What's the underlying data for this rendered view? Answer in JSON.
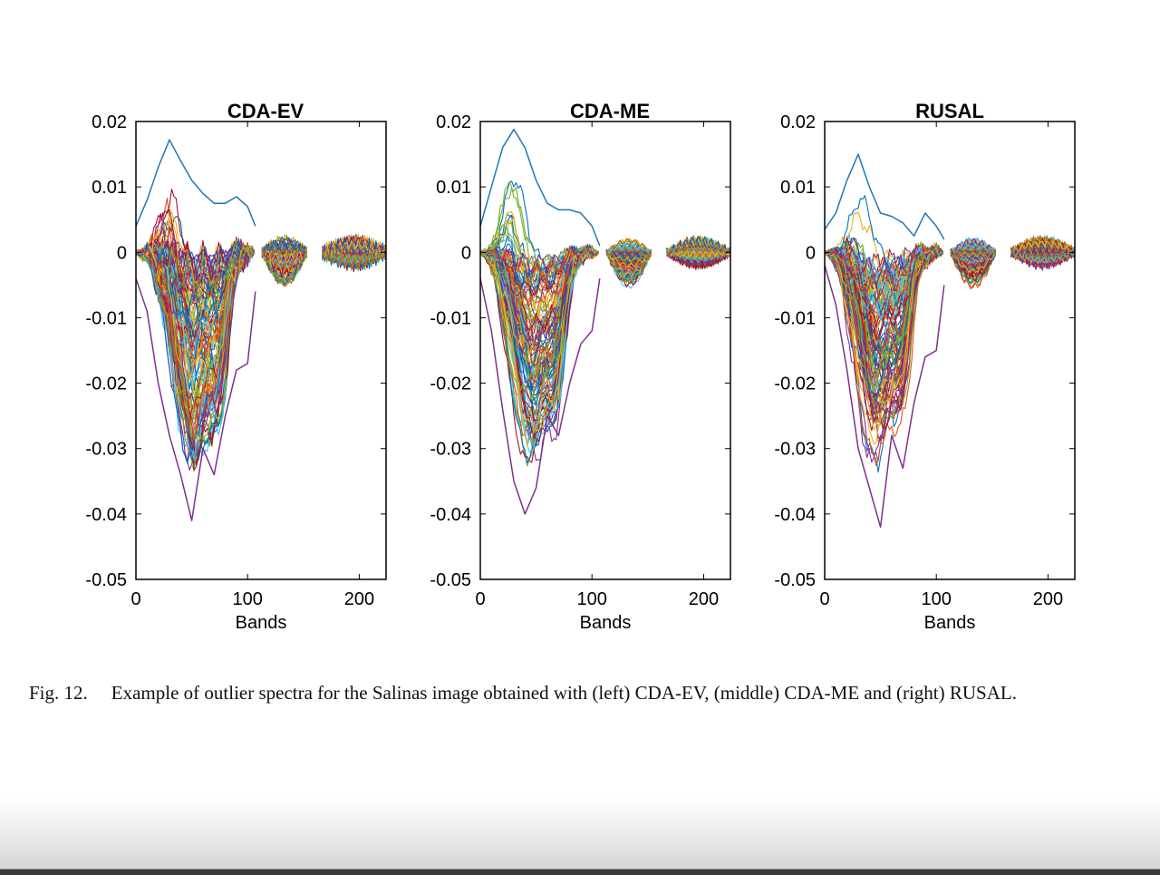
{
  "figure": {
    "caption_label": "Fig. 12.",
    "caption_text": "Example of outlier spectra for the Salinas image obtained with (left) CDA-EV, (middle) CDA-ME and (right) RUSAL."
  },
  "chart_data": [
    {
      "type": "line",
      "title": "CDA-EV",
      "xlabel": "Bands",
      "ylabel": "",
      "xlim": [
        0,
        224
      ],
      "ylim": [
        -0.05,
        0.02
      ],
      "xticks": [
        "0",
        "100",
        "200"
      ],
      "yticks": [
        "0.02",
        "0.01",
        "0",
        "-0.01",
        "-0.02",
        "-0.03",
        "-0.04",
        "-0.05"
      ],
      "band_segments": [
        [
          0,
          107
        ],
        [
          113,
          153
        ],
        [
          167,
          224
        ]
      ],
      "grid": false,
      "legend": "none",
      "num_series": 110,
      "series_shown_explicitly": [
        {
          "x": [
            0,
            10,
            20,
            30,
            40,
            50,
            60,
            70,
            80,
            90,
            100,
            107
          ],
          "y": [
            0.004,
            0.008,
            0.013,
            0.0172,
            0.014,
            0.011,
            0.009,
            0.0075,
            0.0075,
            0.0085,
            0.007,
            0.004
          ],
          "color": "#1f77b4"
        },
        {
          "x": [
            0,
            10,
            20,
            30,
            40,
            50,
            60,
            70,
            80,
            90,
            100,
            107
          ],
          "y": [
            -0.004,
            -0.009,
            -0.02,
            -0.028,
            -0.034,
            -0.041,
            -0.03,
            -0.034,
            -0.025,
            -0.018,
            -0.017,
            -0.006
          ],
          "color": "#7e2f8e"
        }
      ],
      "envelope_note": "min approx -0.041 near band 52; max approx 0.0172 near band 32"
    },
    {
      "type": "line",
      "title": "CDA-ME",
      "xlabel": "Bands",
      "ylabel": "",
      "xlim": [
        0,
        224
      ],
      "ylim": [
        -0.05,
        0.02
      ],
      "xticks": [
        "0",
        "100",
        "200"
      ],
      "yticks": [
        "0.02",
        "0.01",
        "0",
        "-0.01",
        "-0.02",
        "-0.03",
        "-0.04",
        "-0.05"
      ],
      "band_segments": [
        [
          0,
          107
        ],
        [
          113,
          153
        ],
        [
          167,
          224
        ]
      ],
      "grid": false,
      "legend": "none",
      "num_series": 110,
      "series_shown_explicitly": [
        {
          "x": [
            0,
            10,
            20,
            30,
            40,
            50,
            60,
            70,
            80,
            90,
            100,
            107
          ],
          "y": [
            0.004,
            0.01,
            0.016,
            0.0188,
            0.016,
            0.011,
            0.0075,
            0.0065,
            0.0065,
            0.006,
            0.004,
            0.001
          ],
          "color": "#1f77b4"
        },
        {
          "x": [
            0,
            10,
            20,
            30,
            40,
            50,
            60,
            70,
            80,
            90,
            100,
            107
          ],
          "y": [
            -0.004,
            -0.012,
            -0.024,
            -0.035,
            -0.04,
            -0.036,
            -0.025,
            -0.028,
            -0.02,
            -0.014,
            -0.012,
            -0.004
          ],
          "color": "#7e2f8e"
        }
      ],
      "envelope_note": "min approx -0.040 near band 45; max approx 0.0188 near band 30"
    },
    {
      "type": "line",
      "title": "RUSAL",
      "xlabel": "Bands",
      "ylabel": "",
      "xlim": [
        0,
        224
      ],
      "ylim": [
        -0.05,
        0.02
      ],
      "xticks": [
        "0",
        "100",
        "200"
      ],
      "yticks": [
        "0.02",
        "0.01",
        "0",
        "-0.01",
        "-0.02",
        "-0.03",
        "-0.04",
        "-0.05"
      ],
      "band_segments": [
        [
          0,
          107
        ],
        [
          113,
          153
        ],
        [
          167,
          224
        ]
      ],
      "grid": false,
      "legend": "none",
      "num_series": 110,
      "series_shown_explicitly": [
        {
          "x": [
            0,
            10,
            20,
            30,
            40,
            50,
            60,
            70,
            80,
            90,
            100,
            107
          ],
          "y": [
            0.0035,
            0.006,
            0.011,
            0.015,
            0.01,
            0.006,
            0.0055,
            0.0045,
            0.0025,
            0.006,
            0.004,
            0.002
          ],
          "color": "#1f77b4"
        },
        {
          "x": [
            0,
            10,
            20,
            30,
            40,
            50,
            60,
            70,
            80,
            90,
            100,
            107
          ],
          "y": [
            -0.002,
            -0.008,
            -0.018,
            -0.03,
            -0.036,
            -0.042,
            -0.028,
            -0.033,
            -0.023,
            -0.016,
            -0.015,
            -0.005
          ],
          "color": "#7e2f8e"
        }
      ],
      "envelope_note": "min approx -0.042 near band 47; max approx 0.015 near band 31"
    }
  ],
  "colors": {
    "series_palette": [
      "#0072BD",
      "#D95319",
      "#EDB120",
      "#7E2F8E",
      "#77AC30",
      "#4DBEEE",
      "#A2142F"
    ],
    "axis": "#000000",
    "background": "#ffffff"
  }
}
